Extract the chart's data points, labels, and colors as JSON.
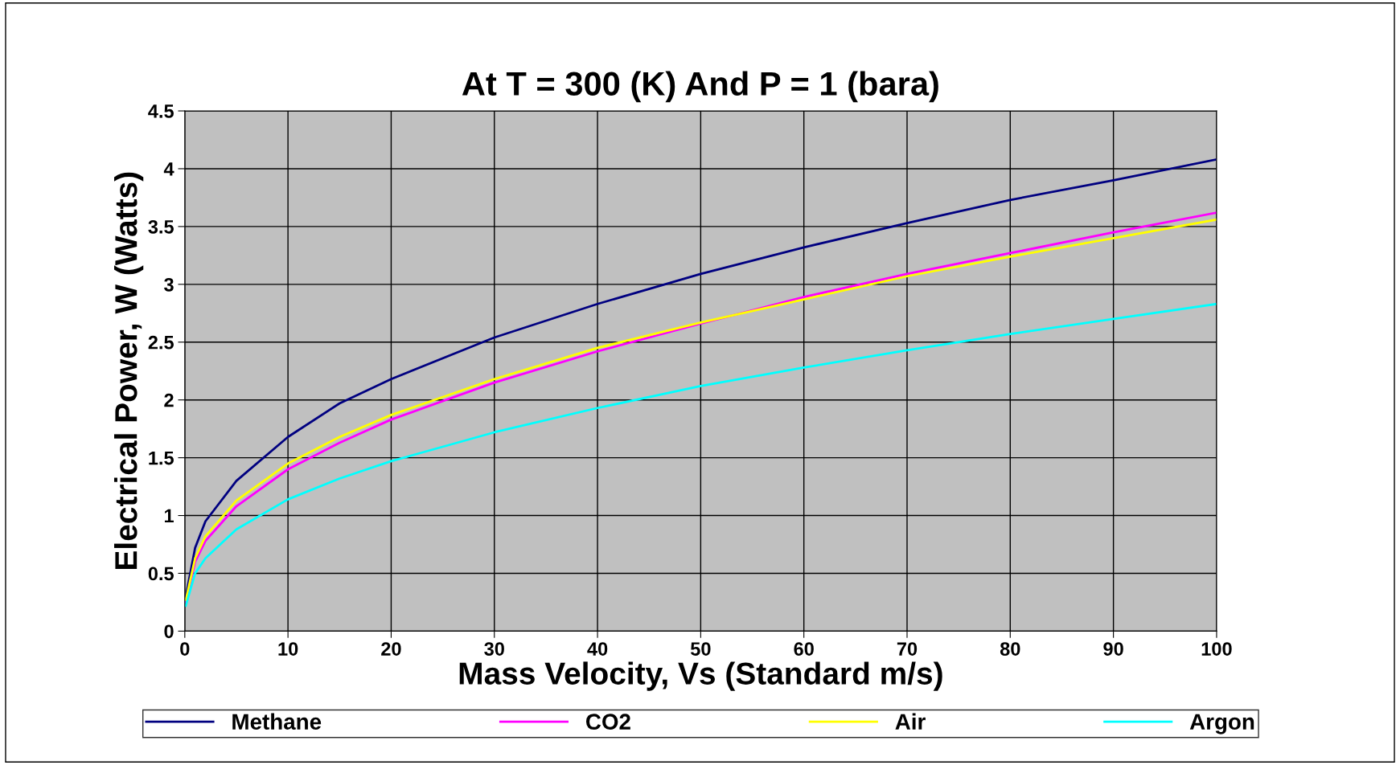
{
  "chart_data": {
    "type": "line",
    "title": "At T = 300 (K) And P = 1 (bara)",
    "xlabel": "Mass Velocity, Vs (Standard m/s)",
    "ylabel": "Electrical Power, W (Watts)",
    "x": [
      0.1,
      1,
      2,
      5,
      10,
      15,
      20,
      30,
      40,
      50,
      60,
      70,
      80,
      90,
      100
    ],
    "series": [
      {
        "name": "Methane",
        "color": "#000080",
        "values": [
          0.3,
          0.72,
          0.95,
          1.3,
          1.68,
          1.97,
          2.18,
          2.54,
          2.83,
          3.09,
          3.32,
          3.53,
          3.73,
          3.9,
          4.08
        ]
      },
      {
        "name": "CO2",
        "color": "#ff00ff",
        "values": [
          0.25,
          0.6,
          0.78,
          1.08,
          1.4,
          1.63,
          1.83,
          2.15,
          2.42,
          2.66,
          2.89,
          3.09,
          3.27,
          3.45,
          3.62
        ]
      },
      {
        "name": "Air",
        "color": "#ffff00",
        "values": [
          0.27,
          0.63,
          0.82,
          1.13,
          1.45,
          1.68,
          1.87,
          2.18,
          2.45,
          2.67,
          2.87,
          3.07,
          3.24,
          3.4,
          3.56
        ]
      },
      {
        "name": "Argon",
        "color": "#00ffff",
        "values": [
          0.22,
          0.5,
          0.63,
          0.88,
          1.14,
          1.32,
          1.47,
          1.72,
          1.93,
          2.12,
          2.28,
          2.43,
          2.57,
          2.7,
          2.83
        ]
      }
    ],
    "xlim": [
      0,
      100
    ],
    "xticks": [
      0,
      10,
      20,
      30,
      40,
      50,
      60,
      70,
      80,
      90,
      100
    ],
    "ylim": [
      0,
      4.5
    ],
    "yticks": [
      0,
      0.5,
      1,
      1.5,
      2,
      2.5,
      3,
      3.5,
      4,
      4.5
    ],
    "grid": true,
    "legend": "bottom",
    "marker": "none",
    "line_style": "solid"
  }
}
